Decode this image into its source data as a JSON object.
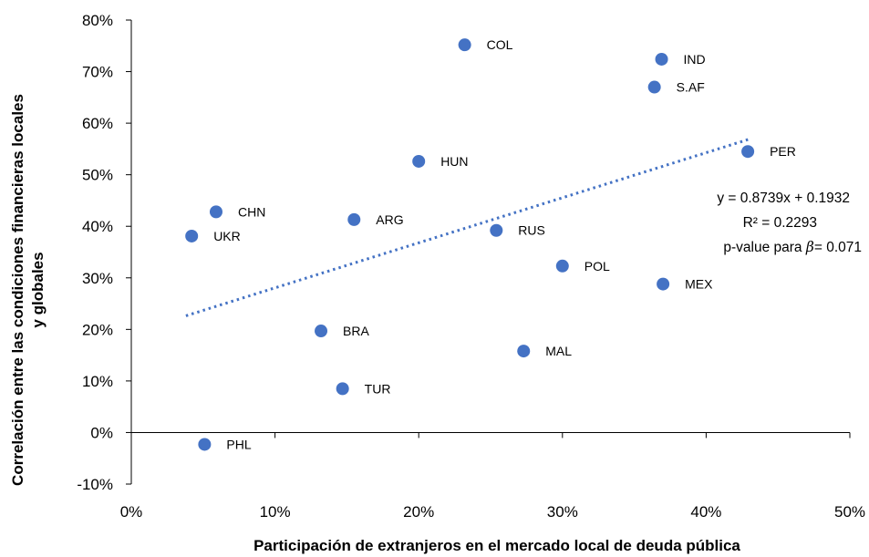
{
  "chart_data": {
    "type": "scatter",
    "xlabel": "Participación de extranjeros en el mercado local de deuda pública",
    "ylabel_line1": "Correlación entre las condiciones financieras locales",
    "ylabel_line2": "y globales",
    "xlim": [
      0,
      0.5
    ],
    "ylim": [
      -0.1,
      0.8
    ],
    "x_ticks": [
      0,
      0.1,
      0.2,
      0.3,
      0.4,
      0.5
    ],
    "x_tick_labels": [
      "0%",
      "10%",
      "20%",
      "30%",
      "40%",
      "50%"
    ],
    "y_ticks": [
      -0.1,
      0,
      0.1,
      0.2,
      0.3,
      0.4,
      0.5,
      0.6,
      0.7,
      0.8
    ],
    "y_tick_labels": [
      "-10%",
      "0%",
      "10%",
      "20%",
      "30%",
      "40%",
      "50%",
      "60%",
      "70%",
      "80%"
    ],
    "grid": false,
    "points": [
      {
        "label": "COL",
        "x": 0.232,
        "y": 0.752
      },
      {
        "label": "IND",
        "x": 0.369,
        "y": 0.724
      },
      {
        "label": "S.AF",
        "x": 0.364,
        "y": 0.67
      },
      {
        "label": "PER",
        "x": 0.429,
        "y": 0.545
      },
      {
        "label": "HUN",
        "x": 0.2,
        "y": 0.526
      },
      {
        "label": "CHN",
        "x": 0.059,
        "y": 0.428
      },
      {
        "label": "ARG",
        "x": 0.155,
        "y": 0.413
      },
      {
        "label": "UKR",
        "x": 0.042,
        "y": 0.381
      },
      {
        "label": "RUS",
        "x": 0.254,
        "y": 0.392
      },
      {
        "label": "POL",
        "x": 0.3,
        "y": 0.323
      },
      {
        "label": "MEX",
        "x": 0.37,
        "y": 0.288
      },
      {
        "label": "BRA",
        "x": 0.132,
        "y": 0.197
      },
      {
        "label": "MAL",
        "x": 0.273,
        "y": 0.158
      },
      {
        "label": "TUR",
        "x": 0.147,
        "y": 0.085
      },
      {
        "label": "PHL",
        "x": 0.051,
        "y": -0.023
      }
    ],
    "trendline": {
      "slope": 0.8739,
      "intercept": 0.1932,
      "x_start": 0.038,
      "x_end": 0.43
    },
    "annotations": {
      "equation": "y = 0.8739x + 0.1932",
      "r2": "R² = 0.2293",
      "pvalue_prefix": "p-value para ",
      "pvalue_symbol": "β",
      "pvalue_suffix": "= 0.071"
    },
    "colors": {
      "point": "#4472C4",
      "trendline": "#4472C4",
      "axis": "#000000"
    }
  }
}
